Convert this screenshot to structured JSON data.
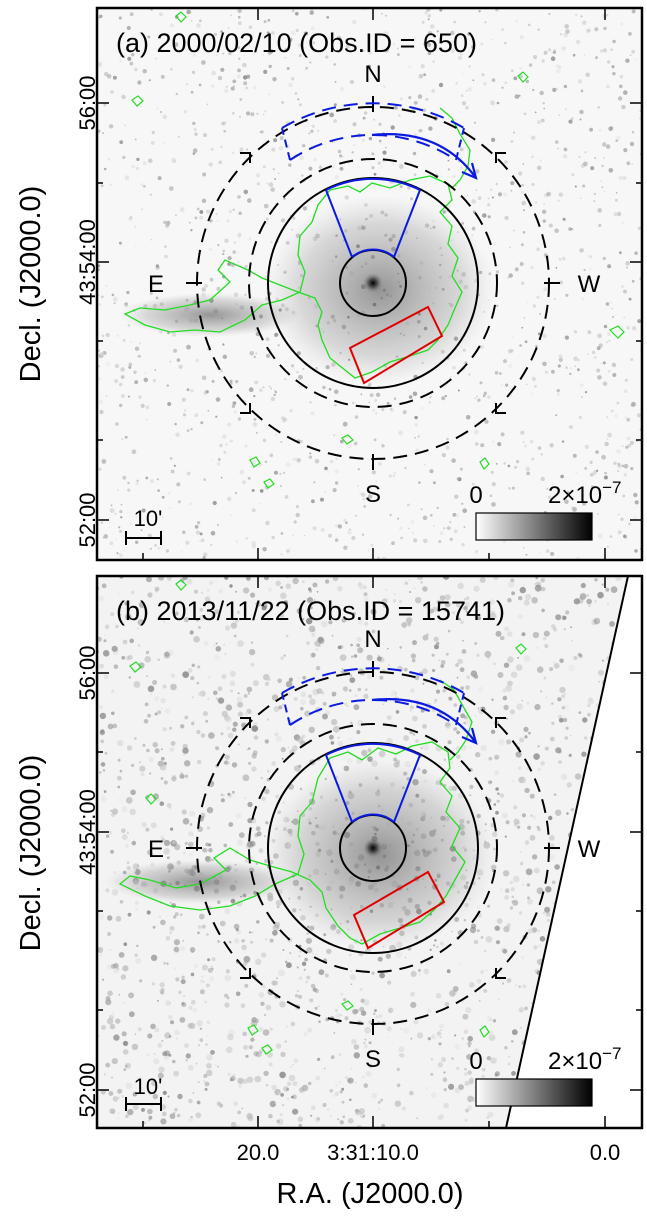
{
  "figure": {
    "ylabel": "Decl. (J2000.0)",
    "xlabel": "R.A. (J2000.0)",
    "xticks": [
      "20.0",
      "3:31:10.0",
      "0.0"
    ],
    "yticks": [
      "56:00",
      "43:54:00",
      "52:00"
    ],
    "colors": {
      "contour": "#22dd22",
      "sector": "#0a1adf",
      "box": "#e00000",
      "rings": "#000000"
    },
    "panels": [
      {
        "title": "(a) 2000/02/10 (Obs.ID = 650)",
        "compass": {
          "n": "N",
          "s": "S",
          "e": "E",
          "w": "W"
        },
        "scalebar": "10'",
        "colorbar": {
          "min": "0",
          "max_base": "2×10",
          "max_exp": "−7"
        },
        "icons": [
          "bright-core",
          "readout-streak"
        ]
      },
      {
        "title": "(b) 2013/11/22 (Obs.ID = 15741)",
        "compass": {
          "n": "N",
          "s": "S",
          "e": "E",
          "w": "W"
        },
        "scalebar": "10'",
        "colorbar": {
          "min": "0",
          "max_base": "2×10",
          "max_exp": "−7"
        },
        "icons": [
          "bright-core",
          "chip-edge-line"
        ]
      }
    ]
  }
}
